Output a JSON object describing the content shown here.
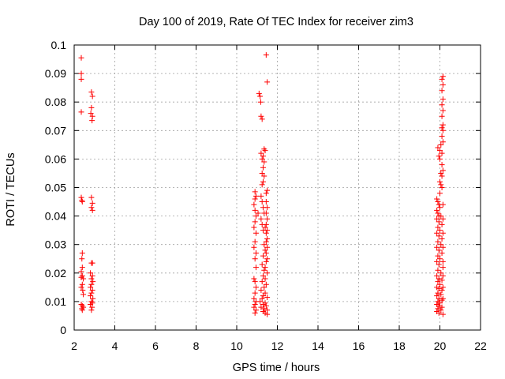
{
  "chart_data": {
    "type": "scatter",
    "title": "Day 100 of 2019, Rate Of TEC Index for receiver zim3",
    "xlabel": "GPS time / hours",
    "ylabel": "ROTI / TECUs",
    "xlim": [
      2,
      22
    ],
    "ylim": [
      0,
      0.1
    ],
    "x_ticks": [
      2,
      4,
      6,
      8,
      10,
      12,
      14,
      16,
      18,
      20,
      22
    ],
    "y_ticks": [
      0,
      0.01,
      0.02,
      0.03,
      0.04,
      0.05,
      0.06,
      0.07,
      0.08,
      0.09,
      0.1
    ],
    "x_tick_labels": [
      "2",
      "4",
      "6",
      "8",
      "10",
      "12",
      "14",
      "16",
      "18",
      "20",
      "22"
    ],
    "y_tick_labels": [
      "0",
      "0.01",
      "0.02",
      "0.03",
      "0.04",
      "0.05",
      "0.06",
      "0.07",
      "0.08",
      "0.09",
      "0.1"
    ],
    "grid": true,
    "marker": "+",
    "color": "#ff0000",
    "series": [
      {
        "name": "ROTI",
        "points": [
          [
            2.35,
            0.0955
          ],
          [
            2.35,
            0.09
          ],
          [
            2.35,
            0.088
          ],
          [
            2.35,
            0.0765
          ],
          [
            2.35,
            0.0465
          ],
          [
            2.38,
            0.0455
          ],
          [
            2.4,
            0.045
          ],
          [
            2.4,
            0.027
          ],
          [
            2.38,
            0.025
          ],
          [
            2.4,
            0.022
          ],
          [
            2.35,
            0.0205
          ],
          [
            2.4,
            0.019
          ],
          [
            2.35,
            0.0185
          ],
          [
            2.45,
            0.018
          ],
          [
            2.4,
            0.016
          ],
          [
            2.35,
            0.015
          ],
          [
            2.42,
            0.014
          ],
          [
            2.45,
            0.0125
          ],
          [
            2.35,
            0.009
          ],
          [
            2.4,
            0.0085
          ],
          [
            2.45,
            0.008
          ],
          [
            2.38,
            0.0075
          ],
          [
            2.4,
            0.007
          ],
          [
            2.85,
            0.0835
          ],
          [
            2.9,
            0.082
          ],
          [
            2.85,
            0.078
          ],
          [
            2.82,
            0.076
          ],
          [
            2.9,
            0.075
          ],
          [
            2.88,
            0.0735
          ],
          [
            2.85,
            0.0465
          ],
          [
            2.9,
            0.0445
          ],
          [
            2.85,
            0.043
          ],
          [
            2.9,
            0.042
          ],
          [
            2.85,
            0.0235
          ],
          [
            2.9,
            0.0235
          ],
          [
            2.8,
            0.02
          ],
          [
            2.9,
            0.019
          ],
          [
            2.85,
            0.018
          ],
          [
            2.92,
            0.017
          ],
          [
            2.85,
            0.016
          ],
          [
            2.8,
            0.015
          ],
          [
            2.9,
            0.014
          ],
          [
            2.85,
            0.013
          ],
          [
            2.8,
            0.012
          ],
          [
            2.92,
            0.011
          ],
          [
            2.85,
            0.01
          ],
          [
            2.9,
            0.0095
          ],
          [
            2.8,
            0.009
          ],
          [
            2.88,
            0.008
          ],
          [
            2.85,
            0.007
          ],
          [
            11.45,
            0.0965
          ],
          [
            11.5,
            0.087
          ],
          [
            11.1,
            0.083
          ],
          [
            11.15,
            0.082
          ],
          [
            11.18,
            0.08
          ],
          [
            11.2,
            0.075
          ],
          [
            11.25,
            0.074
          ],
          [
            11.35,
            0.0635
          ],
          [
            11.4,
            0.063
          ],
          [
            11.2,
            0.062
          ],
          [
            11.3,
            0.061
          ],
          [
            11.25,
            0.06
          ],
          [
            11.35,
            0.059
          ],
          [
            11.3,
            0.057
          ],
          [
            11.25,
            0.055
          ],
          [
            11.35,
            0.054
          ],
          [
            11.3,
            0.052
          ],
          [
            11.25,
            0.051
          ],
          [
            11.5,
            0.049
          ],
          [
            11.45,
            0.048
          ],
          [
            10.9,
            0.0485
          ],
          [
            10.95,
            0.047
          ],
          [
            10.9,
            0.046
          ],
          [
            10.85,
            0.044
          ],
          [
            10.9,
            0.042
          ],
          [
            10.95,
            0.04
          ],
          [
            11.05,
            0.041
          ],
          [
            10.9,
            0.038
          ],
          [
            10.85,
            0.036
          ],
          [
            10.95,
            0.034
          ],
          [
            10.9,
            0.031
          ],
          [
            10.85,
            0.029
          ],
          [
            10.95,
            0.027
          ],
          [
            10.9,
            0.025
          ],
          [
            10.95,
            0.022
          ],
          [
            10.85,
            0.018
          ],
          [
            10.9,
            0.017
          ],
          [
            10.95,
            0.015
          ],
          [
            10.9,
            0.013
          ],
          [
            10.85,
            0.011
          ],
          [
            10.95,
            0.01
          ],
          [
            10.9,
            0.009
          ],
          [
            10.85,
            0.008
          ],
          [
            10.95,
            0.007
          ],
          [
            10.9,
            0.006
          ],
          [
            11.2,
            0.047
          ],
          [
            11.25,
            0.045
          ],
          [
            11.3,
            0.043
          ],
          [
            11.35,
            0.041
          ],
          [
            11.2,
            0.039
          ],
          [
            11.25,
            0.037
          ],
          [
            11.3,
            0.035
          ],
          [
            11.4,
            0.036
          ],
          [
            11.45,
            0.034
          ],
          [
            11.5,
            0.032
          ],
          [
            11.35,
            0.03
          ],
          [
            11.4,
            0.028
          ],
          [
            11.3,
            0.026
          ],
          [
            11.45,
            0.024
          ],
          [
            11.25,
            0.023
          ],
          [
            11.4,
            0.022
          ],
          [
            11.35,
            0.021
          ],
          [
            11.5,
            0.02
          ],
          [
            11.3,
            0.019
          ],
          [
            11.4,
            0.018
          ],
          [
            11.25,
            0.017
          ],
          [
            11.45,
            0.016
          ],
          [
            11.35,
            0.015
          ],
          [
            11.2,
            0.014
          ],
          [
            11.4,
            0.013
          ],
          [
            11.3,
            0.012
          ],
          [
            11.5,
            0.0115
          ],
          [
            11.25,
            0.011
          ],
          [
            11.15,
            0.01
          ],
          [
            11.4,
            0.0095
          ],
          [
            11.3,
            0.009
          ],
          [
            11.45,
            0.0085
          ],
          [
            11.2,
            0.008
          ],
          [
            11.35,
            0.0075
          ],
          [
            11.5,
            0.007
          ],
          [
            11.3,
            0.0065
          ],
          [
            11.4,
            0.006
          ],
          [
            11.5,
            0.0055
          ],
          [
            11.45,
            0.045
          ],
          [
            11.5,
            0.043
          ],
          [
            11.45,
            0.041
          ],
          [
            11.5,
            0.039
          ],
          [
            11.45,
            0.037
          ],
          [
            11.5,
            0.035
          ],
          [
            11.45,
            0.031
          ],
          [
            11.5,
            0.029
          ],
          [
            11.45,
            0.027
          ],
          [
            11.5,
            0.025
          ],
          [
            20.15,
            0.089
          ],
          [
            20.1,
            0.088
          ],
          [
            20.15,
            0.086
          ],
          [
            20.1,
            0.084
          ],
          [
            20.15,
            0.081
          ],
          [
            20.1,
            0.079
          ],
          [
            20.15,
            0.077
          ],
          [
            20.1,
            0.075
          ],
          [
            20.15,
            0.072
          ],
          [
            20.1,
            0.071
          ],
          [
            20.15,
            0.07
          ],
          [
            20.1,
            0.068
          ],
          [
            20.15,
            0.066
          ],
          [
            20.05,
            0.065
          ],
          [
            19.9,
            0.064
          ],
          [
            20.0,
            0.063
          ],
          [
            20.1,
            0.062
          ],
          [
            19.95,
            0.061
          ],
          [
            20.0,
            0.06
          ],
          [
            20.1,
            0.058
          ],
          [
            20.15,
            0.056
          ],
          [
            20.05,
            0.055
          ],
          [
            20.1,
            0.054
          ],
          [
            20.0,
            0.052
          ],
          [
            20.05,
            0.051
          ],
          [
            20.1,
            0.05
          ],
          [
            20.0,
            0.048
          ],
          [
            19.85,
            0.046
          ],
          [
            19.9,
            0.045
          ],
          [
            19.95,
            0.044
          ],
          [
            20.0,
            0.043
          ],
          [
            19.85,
            0.042
          ],
          [
            19.9,
            0.041
          ],
          [
            19.95,
            0.04
          ],
          [
            20.05,
            0.04
          ],
          [
            19.85,
            0.039
          ],
          [
            19.95,
            0.038
          ],
          [
            20.1,
            0.037
          ],
          [
            19.9,
            0.036
          ],
          [
            20.0,
            0.035
          ],
          [
            19.85,
            0.034
          ],
          [
            19.95,
            0.033
          ],
          [
            20.1,
            0.032
          ],
          [
            19.9,
            0.031
          ],
          [
            20.05,
            0.03
          ],
          [
            19.85,
            0.029
          ],
          [
            19.95,
            0.028
          ],
          [
            20.1,
            0.027
          ],
          [
            19.9,
            0.026
          ],
          [
            20.0,
            0.025
          ],
          [
            19.85,
            0.024
          ],
          [
            19.95,
            0.023
          ],
          [
            20.15,
            0.022
          ],
          [
            19.9,
            0.021
          ],
          [
            20.05,
            0.02
          ],
          [
            19.85,
            0.019
          ],
          [
            19.95,
            0.018
          ],
          [
            20.1,
            0.0175
          ],
          [
            19.9,
            0.017
          ],
          [
            20.0,
            0.016
          ],
          [
            19.85,
            0.015
          ],
          [
            19.95,
            0.0145
          ],
          [
            20.1,
            0.014
          ],
          [
            19.9,
            0.013
          ],
          [
            20.05,
            0.0125
          ],
          [
            19.85,
            0.012
          ],
          [
            19.95,
            0.011
          ],
          [
            20.1,
            0.0105
          ],
          [
            19.9,
            0.01
          ],
          [
            20.0,
            0.0095
          ],
          [
            19.85,
            0.009
          ],
          [
            19.95,
            0.0085
          ],
          [
            20.1,
            0.008
          ],
          [
            19.9,
            0.0075
          ],
          [
            20.05,
            0.007
          ],
          [
            19.85,
            0.0065
          ],
          [
            19.95,
            0.006
          ],
          [
            20.15,
            0.0055
          ],
          [
            20.15,
            0.044
          ],
          [
            20.15,
            0.039
          ],
          [
            20.15,
            0.034
          ],
          [
            20.15,
            0.029
          ],
          [
            20.15,
            0.024
          ],
          [
            20.15,
            0.019
          ],
          [
            20.15,
            0.015
          ],
          [
            20.15,
            0.011
          ]
        ]
      }
    ]
  }
}
